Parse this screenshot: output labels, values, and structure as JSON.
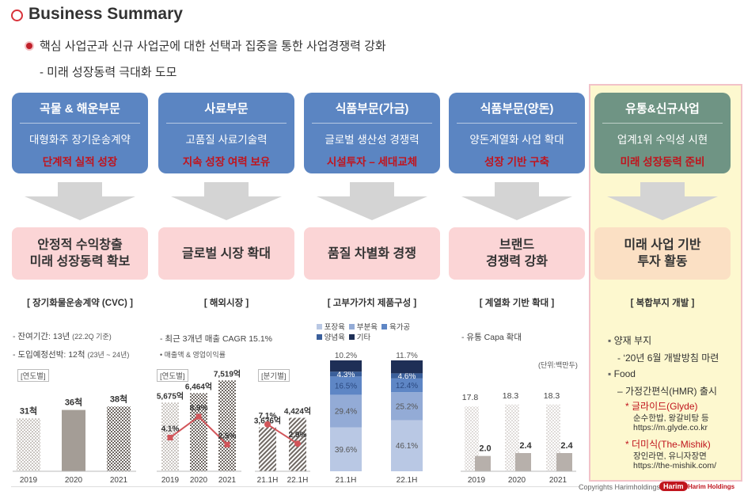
{
  "header": {
    "title": "Business Summary"
  },
  "intro": {
    "line1": "핵심 사업군과 신규 사업군에 대한 선택과 집중을 통한 사업경쟁력 강화",
    "line2": "- 미래 성장동력 극대화 도모"
  },
  "columns": [
    {
      "title": "곡물 & 해운부문",
      "sub": "대형화주 장기운송계약",
      "red": "단계적 실적 성장",
      "result": [
        "안정적 수익창출",
        "미래 성장동력 확보"
      ],
      "section": "[ 장기화물운송계약 (CVC) ]"
    },
    {
      "title": "사료부문",
      "sub": "고품질 사료기술력",
      "red": "지속 성장 여력 보유",
      "result": [
        "글로벌 시장 확대"
      ],
      "section": "[ 해외시장 ]"
    },
    {
      "title": "식품부문(가금)",
      "sub": "글로벌 생산성 경쟁력",
      "red": "시설투자 – 세대교체",
      "result": [
        "품질 차별화 경쟁"
      ],
      "section": "[ 고부가가치 제품구성 ]"
    },
    {
      "title": "식품부문(양돈)",
      "sub": "양돈계열화 사업 확대",
      "red": "성장 기반 구축",
      "result": [
        "브랜드",
        "경쟁력 강화"
      ],
      "section": "[ 계열화 기반 확대 ]"
    },
    {
      "title": "유통&신규사업",
      "sub": "업계1위 수익성 시현",
      "red": "미래 성장동력 준비",
      "result": [
        "미래 사업 기반",
        "투자 활동"
      ],
      "section": "[ 복합부지 개발 ]"
    }
  ],
  "cvc": {
    "note1": "- 잔여기간: 13년",
    "note1b": "(22.2Q 기준)",
    "note2": "- 도입예정선박: 12척",
    "note2b": "(23년 ~ 24년)",
    "tag": "[연도별]"
  },
  "overseas": {
    "note1": "- 최근 3개년 매출 CAGR 15.1%",
    "note2": "• 매출액 & 영업이익률",
    "tag_year": "[연도별]",
    "tag_half": "[분기별]"
  },
  "product_mix": {
    "legend": [
      "포장육",
      "부분육",
      "육가공",
      "양념육",
      "기타"
    ]
  },
  "pork": {
    "note": "- 유통 Capa 확대",
    "unit": "(단위:백만두)"
  },
  "retail": {
    "items": [
      {
        "bullet": "▪",
        "text": "양재 부지"
      },
      {
        "bullet": "",
        "text": "- ‘20년 6월 개발방침 마련"
      },
      {
        "bullet": "▪",
        "text": "Food"
      },
      {
        "bullet": "",
        "text": "– 가정간편식(HMR) 출시"
      },
      {
        "bullet": "",
        "text": "* 글라이드(Glyde)"
      },
      {
        "bullet": "",
        "text": "순수한밥, 왕갈비탕 등"
      },
      {
        "bullet": "",
        "text": "https://m.glyde.co.kr"
      },
      {
        "bullet": "",
        "text": "* 더미식(The-Mishik)"
      },
      {
        "bullet": "",
        "text": "장인라면, 유니자장면"
      },
      {
        "bullet": "",
        "text": "https://the-mishik.com/"
      }
    ]
  },
  "footer": {
    "copyright": "Copyrights Harimholdings",
    "logo": "Harim",
    "logo_text": "Harim Holdings"
  },
  "colors": {
    "accent_red": "#c0141d",
    "box_blue": "#5b85c2",
    "box_green": "#6f9484",
    "pink": "#fbd5d6"
  },
  "chart_data": [
    {
      "type": "bar",
      "categories": [
        "2019",
        "2020",
        "2021"
      ],
      "values": [
        31,
        36,
        38
      ],
      "labels": [
        "31척",
        "36척",
        "38척"
      ],
      "title": "",
      "xlabel": "",
      "ylabel": ""
    },
    {
      "type": "bar",
      "categories": [
        "2019",
        "2020",
        "2021"
      ],
      "series": [
        {
          "name": "매출액",
          "values": [
            5675,
            6464,
            7519
          ],
          "labels": [
            "5,675억",
            "6,464억",
            "7,519억"
          ]
        },
        {
          "name": "영업이익률",
          "values": [
            4.1,
            8.9,
            2.5
          ],
          "labels": [
            "4.1%",
            "8.9%",
            "2.5%"
          ]
        }
      ]
    },
    {
      "type": "bar",
      "categories": [
        "21.1H",
        "22.1H"
      ],
      "series": [
        {
          "name": "매출액",
          "values": [
            3636,
            4424
          ],
          "labels": [
            "3,636억",
            "4,424억"
          ]
        },
        {
          "name": "영업이익률",
          "values": [
            7.1,
            2.9
          ],
          "labels": [
            "7.1%",
            "2.9%"
          ]
        }
      ]
    },
    {
      "type": "bar",
      "categories": [
        "21.1H",
        "22.1H"
      ],
      "series": [
        {
          "name": "포장육",
          "values": [
            39.6,
            46.1
          ],
          "labels": [
            "39.6%",
            "46.1%"
          ]
        },
        {
          "name": "부분육",
          "values": [
            29.4,
            25.2
          ],
          "labels": [
            "29.4%",
            "25.2%"
          ]
        },
        {
          "name": "육가공",
          "values": [
            16.5,
            12.4
          ],
          "labels": [
            "16.5%",
            "12.4%"
          ]
        },
        {
          "name": "양념육",
          "values": [
            4.3,
            4.6
          ],
          "labels": [
            "4.3%",
            "4.6%"
          ]
        },
        {
          "name": "기타",
          "values": [
            10.2,
            11.7
          ],
          "labels": [
            "10.2%",
            "11.7%"
          ]
        }
      ]
    },
    {
      "type": "bar",
      "categories": [
        "2019",
        "2020",
        "2021"
      ],
      "series": [
        {
          "values": [
            17.8,
            18.3,
            18.3
          ],
          "labels": [
            "17.8",
            "18.3",
            "18.3"
          ]
        },
        {
          "values": [
            2.0,
            2.4,
            2.4
          ],
          "labels": [
            "2.0",
            "2.4",
            "2.4"
          ]
        }
      ]
    }
  ]
}
